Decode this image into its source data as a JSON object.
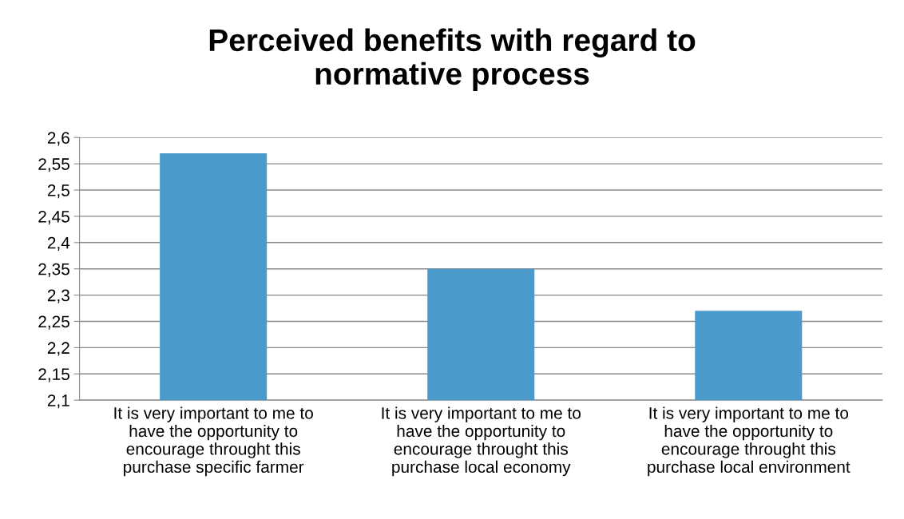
{
  "chart_data": {
    "type": "bar",
    "title": "Perceived benefits with regard to\nnormative process",
    "categories": [
      "It is very important to me to\nhave the opportunity to\nencourage throught this\npurchase specific farmer",
      "It is very important to me to\nhave the opportunity to\nencourage throught this\npurchase local economy",
      "It is very important to me to\nhave the opportunity to\nencourage throught this\npurchase local environment"
    ],
    "values": [
      2.57,
      2.35,
      2.27
    ],
    "color": "#4a9bcb",
    "ylim": [
      2.1,
      2.6
    ],
    "yticks": [
      {
        "value": 2.1,
        "label": "2,1"
      },
      {
        "value": 2.15,
        "label": "2,15"
      },
      {
        "value": 2.2,
        "label": "2,2"
      },
      {
        "value": 2.25,
        "label": "2,25"
      },
      {
        "value": 2.3,
        "label": "2,3"
      },
      {
        "value": 2.35,
        "label": "2,35"
      },
      {
        "value": 2.4,
        "label": "2,4"
      },
      {
        "value": 2.45,
        "label": "2,45"
      },
      {
        "value": 2.5,
        "label": "2,5"
      },
      {
        "value": 2.55,
        "label": "2,55"
      },
      {
        "value": 2.6,
        "label": "2,6"
      }
    ],
    "grid": "y",
    "legend": false
  }
}
